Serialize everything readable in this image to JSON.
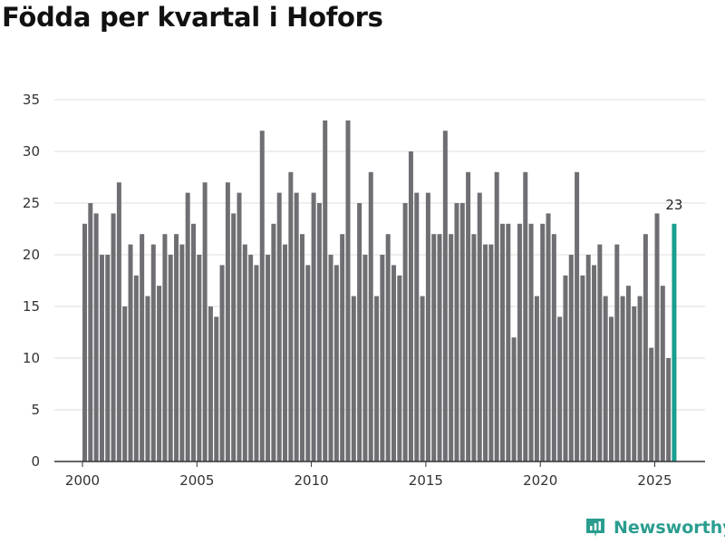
{
  "title": "Födda per kvartal i Hofors",
  "brand": {
    "name": "Newsworthy"
  },
  "colors": {
    "bar": "#6f6e73",
    "highlight": "#1a9e8f",
    "brand": "#2a9d8f",
    "grid": "#dcdcdc"
  },
  "chart_data": {
    "type": "bar",
    "title": "Födda per kvartal i Hofors",
    "xlabel": "",
    "ylabel": "",
    "ylim": [
      0,
      35
    ],
    "yticks": [
      0,
      5,
      10,
      15,
      20,
      25,
      30,
      35
    ],
    "xticks": [
      2000,
      2005,
      2010,
      2015,
      2020,
      2025
    ],
    "start_year": 2000,
    "grid": true,
    "highlight_last": true,
    "last_label": "23",
    "values": [
      23,
      25,
      24,
      20,
      20,
      24,
      27,
      15,
      21,
      18,
      22,
      16,
      21,
      17,
      22,
      20,
      22,
      21,
      26,
      23,
      20,
      27,
      15,
      14,
      19,
      27,
      24,
      26,
      21,
      20,
      19,
      32,
      20,
      23,
      26,
      21,
      28,
      26,
      22,
      19,
      26,
      25,
      33,
      20,
      19,
      22,
      33,
      16,
      25,
      20,
      28,
      16,
      20,
      22,
      19,
      18,
      25,
      30,
      26,
      16,
      26,
      22,
      22,
      32,
      22,
      25,
      25,
      28,
      22,
      26,
      21,
      21,
      28,
      23,
      23,
      12,
      23,
      28,
      23,
      16,
      23,
      24,
      22,
      14,
      18,
      20,
      28,
      18,
      20,
      19,
      21,
      16,
      14,
      21,
      16,
      17,
      15,
      16,
      22,
      11,
      24,
      17,
      10,
      23
    ]
  }
}
